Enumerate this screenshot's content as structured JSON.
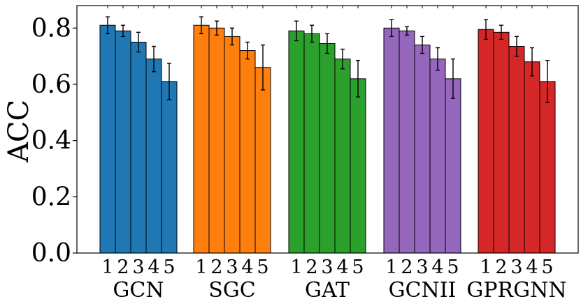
{
  "chart_data": {
    "type": "bar",
    "title": "",
    "xlabel": "",
    "ylabel": "ACC",
    "ylim": [
      0.0,
      0.88
    ],
    "yticks": [
      0.0,
      0.2,
      0.4,
      0.6,
      0.8
    ],
    "ytick_labels": [
      "0.0",
      "0.2",
      "0.4",
      "0.6",
      "0.8"
    ],
    "sub_categories": [
      "1",
      "2",
      "3",
      "4",
      "5"
    ],
    "groups": [
      {
        "name": "GCN",
        "color": "#1f77b4",
        "values": [
          0.81,
          0.79,
          0.75,
          0.69,
          0.61
        ],
        "errors": [
          0.03,
          0.02,
          0.035,
          0.045,
          0.065
        ]
      },
      {
        "name": "SGC",
        "color": "#ff7f0e",
        "values": [
          0.81,
          0.8,
          0.77,
          0.72,
          0.66
        ],
        "errors": [
          0.03,
          0.025,
          0.03,
          0.03,
          0.08
        ]
      },
      {
        "name": "GAT",
        "color": "#2ca02c",
        "values": [
          0.79,
          0.78,
          0.745,
          0.69,
          0.62
        ],
        "errors": [
          0.035,
          0.03,
          0.035,
          0.035,
          0.065
        ]
      },
      {
        "name": "GCNII",
        "color": "#9467bd",
        "values": [
          0.8,
          0.79,
          0.74,
          0.69,
          0.62
        ],
        "errors": [
          0.03,
          0.015,
          0.03,
          0.04,
          0.07
        ]
      },
      {
        "name": "GPRGNN",
        "color": "#d62728",
        "values": [
          0.795,
          0.785,
          0.735,
          0.68,
          0.61
        ],
        "errors": [
          0.035,
          0.025,
          0.035,
          0.05,
          0.075
        ]
      }
    ]
  }
}
